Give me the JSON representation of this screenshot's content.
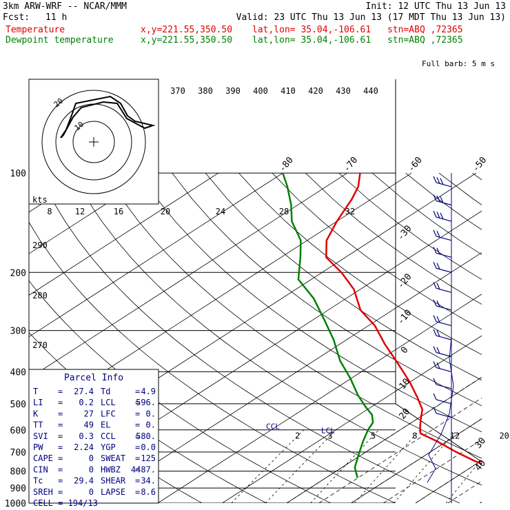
{
  "header": {
    "model": "3km ARW-WRF -- NCAR/MMM",
    "init": "Init: 12 UTC Thu 13 Jun 13",
    "fcst_label": "Fcst:",
    "fcst_value": "11 h",
    "valid": "Valid: 23 UTC Thu 13 Jun 13 (17 MDT Thu 13 Jun 13)",
    "temp_name": "Temperature",
    "dew_name": "Dewpoint temperature",
    "xy": "x,y=221.55,350.50",
    "latlon": "lat,lon= 35.04,-106.61",
    "stn": "stn=ABQ ,72365"
  },
  "colors": {
    "temperature": "#e00000",
    "dewpoint": "#008000",
    "wind": "#000080",
    "grid": "#000000"
  },
  "chart_data": {
    "type": "line",
    "diagram": "skew-T log-p",
    "pressure_ticks": [
      100,
      200,
      300,
      400,
      500,
      600,
      700,
      800,
      900,
      1000
    ],
    "isotherm_labels": [
      -80,
      -70,
      -60,
      -50,
      -40,
      -30,
      -20,
      -10,
      0,
      10,
      20,
      30,
      40
    ],
    "theta_labels": [
      370,
      380,
      390,
      400,
      410,
      420,
      430,
      440
    ],
    "theta_labels_lower": [
      290,
      280,
      270
    ],
    "mixing_ratio_labels": [
      "2",
      "3",
      "5",
      "8",
      "12",
      "20"
    ],
    "ccl_label": "CCL",
    "lcl_label": "LCL",
    "series": [
      {
        "name": "Temperature",
        "color": "#e00000",
        "points": [
          [
            838,
            30
          ],
          [
            800,
            25.6
          ],
          [
            745,
            19
          ],
          [
            700,
            14
          ],
          [
            650,
            8.5
          ],
          [
            615,
            4
          ],
          [
            590,
            2.5
          ],
          [
            560,
            0.8
          ],
          [
            520,
            -1.5
          ],
          [
            480,
            -5
          ],
          [
            430,
            -10
          ],
          [
            380,
            -16
          ],
          [
            330,
            -23
          ],
          [
            290,
            -29
          ],
          [
            260,
            -35
          ],
          [
            225,
            -41
          ],
          [
            200,
            -47
          ],
          [
            180,
            -53
          ],
          [
            160,
            -57
          ],
          [
            140,
            -60
          ],
          [
            120,
            -63
          ],
          [
            110,
            -65
          ],
          [
            100,
            -68
          ]
        ]
      },
      {
        "name": "Dewpoint temperature",
        "color": "#008000",
        "points": [
          [
            838,
            4.9
          ],
          [
            780,
            2
          ],
          [
            700,
            -1
          ],
          [
            650,
            -3
          ],
          [
            600,
            -5
          ],
          [
            570,
            -6
          ],
          [
            540,
            -8
          ],
          [
            510,
            -11
          ],
          [
            470,
            -15
          ],
          [
            420,
            -20
          ],
          [
            370,
            -26
          ],
          [
            320,
            -32
          ],
          [
            280,
            -38
          ],
          [
            240,
            -45
          ],
          [
            210,
            -52
          ],
          [
            180,
            -57
          ],
          [
            160,
            -61
          ],
          [
            140,
            -67
          ],
          [
            125,
            -71
          ],
          [
            110,
            -76
          ],
          [
            100,
            -80
          ]
        ]
      }
    ],
    "wind_profile_unit": "m/s",
    "wind_legend": "Full barb: 5 m s",
    "hodograph": {
      "unit_label": "kts",
      "speed_labels": [
        "8",
        "12",
        "16",
        "20",
        "24",
        "28",
        "32"
      ],
      "ring_labels": [
        "10",
        "20"
      ]
    },
    "parcel_info": {
      "title": "Parcel Info",
      "rows": [
        [
          "T",
          "=",
          "27.4",
          "Td",
          "=",
          "4.9"
        ],
        [
          "LI",
          "=",
          "0.2",
          "LCL",
          "=",
          "596."
        ],
        [
          "K",
          "=",
          "27",
          "LFC",
          "=",
          "0."
        ],
        [
          "TT",
          "=",
          "49",
          "EL",
          "=",
          "0."
        ],
        [
          "SVI",
          "=",
          "0.3",
          "CCL",
          "=",
          "580."
        ],
        [
          "PW",
          "=",
          "2.24",
          "YGP",
          "=",
          "0.0"
        ],
        [
          "CAPE",
          "=",
          "0",
          "SWEAT",
          "=",
          "125"
        ],
        [
          "CIN",
          "=",
          "0",
          "HWBZ",
          "=",
          "4487."
        ],
        [
          "Tc",
          "=",
          "29.4",
          "SHEAR",
          "=",
          "34."
        ],
        [
          "SREH",
          "=",
          "0",
          "LAPSE",
          "=",
          "8.6"
        ]
      ],
      "footer": "CELL = 194/13"
    }
  }
}
